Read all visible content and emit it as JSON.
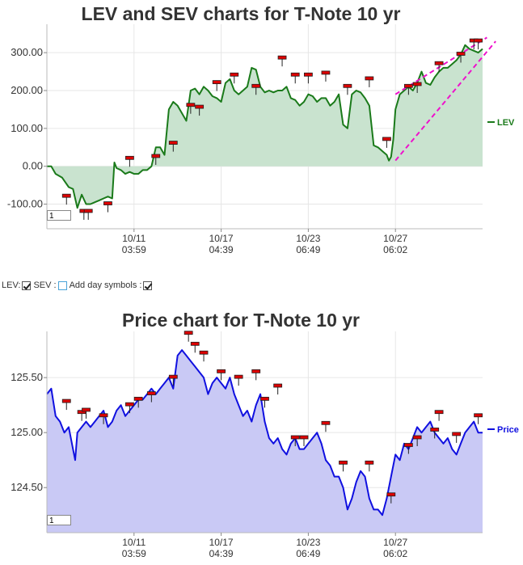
{
  "colors": {
    "lev_line": "#1a7a1a",
    "lev_fill": "#c9e3cf",
    "price_line": "#1010e0",
    "price_fill": "#c9c9f5",
    "trend": "#ee11cc",
    "symbol": "#dd0000",
    "grid": "#e6e6e6"
  },
  "controls": {
    "lev_label": "LEV:",
    "sev_label": "SEV :",
    "day_label": "Add day symbols :",
    "lev_checked": true,
    "sev_checked": false,
    "day_checked": true
  },
  "chart_data": [
    {
      "id": "lev",
      "type": "area",
      "title": "LEV and SEV charts for T-Note 10 yr",
      "xlabel": "",
      "ylabel": "",
      "ylim": [
        -165,
        375
      ],
      "y_ticks": [
        300,
        200,
        100,
        0,
        -100
      ],
      "y_tick_labels": [
        "300.00",
        "200.00",
        "100.00",
        "0.00",
        "-100.00"
      ],
      "x_tick_positions": [
        0.2,
        0.4,
        0.6,
        0.8
      ],
      "x_tick_labels": [
        [
          "10/11",
          "03:59"
        ],
        [
          "10/17",
          "04:39"
        ],
        [
          "10/23",
          "06:49"
        ],
        [
          "10/27",
          "06:02"
        ]
      ],
      "grid": true,
      "legend": "right",
      "zoom_value": "1",
      "series": [
        {
          "name": "LEV",
          "x": [
            0,
            0.01,
            0.02,
            0.035,
            0.05,
            0.06,
            0.07,
            0.08,
            0.09,
            0.1,
            0.11,
            0.12,
            0.13,
            0.14,
            0.15,
            0.155,
            0.16,
            0.17,
            0.18,
            0.19,
            0.2,
            0.21,
            0.22,
            0.23,
            0.24,
            0.25,
            0.26,
            0.27,
            0.28,
            0.29,
            0.3,
            0.31,
            0.32,
            0.33,
            0.34,
            0.35,
            0.36,
            0.37,
            0.38,
            0.39,
            0.4,
            0.41,
            0.42,
            0.43,
            0.44,
            0.45,
            0.46,
            0.47,
            0.48,
            0.49,
            0.5,
            0.51,
            0.52,
            0.53,
            0.54,
            0.55,
            0.56,
            0.57,
            0.58,
            0.59,
            0.6,
            0.61,
            0.62,
            0.63,
            0.64,
            0.65,
            0.66,
            0.67,
            0.68,
            0.69,
            0.7,
            0.71,
            0.72,
            0.73,
            0.74,
            0.75,
            0.76,
            0.77,
            0.78,
            0.785,
            0.79,
            0.795,
            0.8,
            0.81,
            0.82,
            0.83,
            0.84,
            0.85,
            0.86,
            0.87,
            0.88,
            0.89,
            0.9,
            0.91,
            0.92,
            0.93,
            0.94,
            0.95,
            0.96,
            0.97,
            0.98,
            0.99,
            1.0
          ],
          "values": [
            0,
            0,
            -20,
            -30,
            -55,
            -60,
            -110,
            -75,
            -100,
            -100,
            -95,
            -90,
            -85,
            -80,
            -85,
            10,
            -5,
            -10,
            -20,
            -15,
            -20,
            -20,
            -10,
            -10,
            0,
            50,
            50,
            30,
            150,
            170,
            160,
            140,
            120,
            200,
            205,
            190,
            210,
            200,
            185,
            180,
            170,
            220,
            230,
            200,
            190,
            200,
            210,
            260,
            255,
            210,
            195,
            200,
            195,
            200,
            200,
            210,
            180,
            175,
            160,
            170,
            190,
            185,
            170,
            180,
            180,
            160,
            170,
            190,
            110,
            100,
            190,
            200,
            195,
            180,
            160,
            55,
            50,
            40,
            30,
            15,
            25,
            70,
            150,
            190,
            200,
            210,
            200,
            220,
            250,
            220,
            215,
            235,
            250,
            260,
            260,
            270,
            280,
            295,
            320,
            310,
            305,
            300,
            310
          ]
        }
      ],
      "symbols": [
        {
          "x": 0.045,
          "y": -80
        },
        {
          "x": 0.085,
          "y": -120
        },
        {
          "x": 0.095,
          "y": -120
        },
        {
          "x": 0.14,
          "y": -100
        },
        {
          "x": 0.19,
          "y": 20
        },
        {
          "x": 0.25,
          "y": 25
        },
        {
          "x": 0.29,
          "y": 60
        },
        {
          "x": 0.33,
          "y": 160
        },
        {
          "x": 0.35,
          "y": 155
        },
        {
          "x": 0.39,
          "y": 220
        },
        {
          "x": 0.43,
          "y": 240
        },
        {
          "x": 0.48,
          "y": 210
        },
        {
          "x": 0.54,
          "y": 285
        },
        {
          "x": 0.57,
          "y": 240
        },
        {
          "x": 0.6,
          "y": 240
        },
        {
          "x": 0.64,
          "y": 245
        },
        {
          "x": 0.69,
          "y": 210
        },
        {
          "x": 0.74,
          "y": 230
        },
        {
          "x": 0.78,
          "y": 70
        },
        {
          "x": 0.83,
          "y": 210
        },
        {
          "x": 0.85,
          "y": 215
        },
        {
          "x": 0.9,
          "y": 270
        },
        {
          "x": 0.95,
          "y": 295
        },
        {
          "x": 0.98,
          "y": 330
        },
        {
          "x": 0.99,
          "y": 330
        }
      ],
      "trendlines": [
        {
          "x1": 0.8,
          "y1": 190,
          "x2": 1.01,
          "y2": 340
        },
        {
          "x1": 0.8,
          "y1": 15,
          "x2": 1.03,
          "y2": 330
        }
      ]
    },
    {
      "id": "price",
      "type": "area",
      "title": "Price chart for T-Note 10 yr",
      "xlabel": "",
      "ylabel": "",
      "ylim": [
        124.09,
        125.92
      ],
      "y_ticks": [
        125.5,
        125.0,
        124.5
      ],
      "y_tick_labels": [
        "125.50",
        "125.00",
        "124.50"
      ],
      "x_tick_positions": [
        0.2,
        0.4,
        0.6,
        0.8
      ],
      "x_tick_labels": [
        [
          "10/11",
          "03:59"
        ],
        [
          "10/17",
          "04:39"
        ],
        [
          "10/23",
          "06:49"
        ],
        [
          "10/27",
          "06:02"
        ]
      ],
      "grid": true,
      "legend": "right",
      "zoom_value": "1",
      "series": [
        {
          "name": "Price",
          "x": [
            0,
            0.01,
            0.02,
            0.03,
            0.04,
            0.05,
            0.06,
            0.065,
            0.07,
            0.08,
            0.09,
            0.1,
            0.11,
            0.12,
            0.13,
            0.14,
            0.15,
            0.16,
            0.17,
            0.18,
            0.19,
            0.2,
            0.21,
            0.22,
            0.23,
            0.24,
            0.25,
            0.26,
            0.27,
            0.28,
            0.29,
            0.3,
            0.31,
            0.32,
            0.33,
            0.34,
            0.35,
            0.36,
            0.37,
            0.38,
            0.39,
            0.4,
            0.41,
            0.42,
            0.43,
            0.44,
            0.45,
            0.46,
            0.47,
            0.48,
            0.49,
            0.5,
            0.51,
            0.52,
            0.53,
            0.54,
            0.55,
            0.56,
            0.57,
            0.58,
            0.59,
            0.6,
            0.61,
            0.62,
            0.63,
            0.64,
            0.65,
            0.66,
            0.67,
            0.68,
            0.69,
            0.7,
            0.71,
            0.72,
            0.73,
            0.74,
            0.75,
            0.76,
            0.77,
            0.78,
            0.79,
            0.8,
            0.81,
            0.82,
            0.83,
            0.84,
            0.85,
            0.86,
            0.87,
            0.88,
            0.89,
            0.9,
            0.91,
            0.92,
            0.93,
            0.94,
            0.95,
            0.96,
            0.97,
            0.98,
            0.99,
            1.0
          ],
          "values": [
            125.35,
            125.4,
            125.15,
            125.1,
            125.0,
            125.05,
            124.85,
            124.75,
            125.0,
            125.05,
            125.1,
            125.05,
            125.1,
            125.15,
            125.2,
            125.05,
            125.1,
            125.2,
            125.25,
            125.15,
            125.2,
            125.25,
            125.3,
            125.3,
            125.35,
            125.4,
            125.35,
            125.4,
            125.45,
            125.5,
            125.4,
            125.7,
            125.75,
            125.7,
            125.65,
            125.6,
            125.55,
            125.5,
            125.35,
            125.45,
            125.5,
            125.45,
            125.4,
            125.5,
            125.35,
            125.25,
            125.15,
            125.2,
            125.1,
            125.25,
            125.35,
            125.1,
            124.95,
            124.9,
            124.95,
            124.85,
            124.8,
            124.9,
            124.95,
            124.85,
            124.85,
            124.9,
            124.95,
            125.0,
            124.9,
            124.75,
            124.7,
            124.6,
            124.6,
            124.5,
            124.3,
            124.4,
            124.55,
            124.65,
            124.6,
            124.4,
            124.3,
            124.3,
            124.25,
            124.4,
            124.6,
            124.8,
            124.75,
            124.9,
            124.85,
            124.95,
            125.05,
            125.0,
            125.05,
            125.1,
            125.0,
            124.95,
            124.9,
            124.95,
            124.85,
            124.8,
            124.9,
            125.0,
            125.05,
            125.1,
            125.0,
            125.0
          ]
        }
      ],
      "symbols": [
        {
          "x": 0.045,
          "y": 125.28
        },
        {
          "x": 0.08,
          "y": 125.18
        },
        {
          "x": 0.09,
          "y": 125.2
        },
        {
          "x": 0.13,
          "y": 125.15
        },
        {
          "x": 0.19,
          "y": 125.25
        },
        {
          "x": 0.21,
          "y": 125.3
        },
        {
          "x": 0.24,
          "y": 125.35
        },
        {
          "x": 0.29,
          "y": 125.5
        },
        {
          "x": 0.325,
          "y": 125.9
        },
        {
          "x": 0.34,
          "y": 125.8
        },
        {
          "x": 0.36,
          "y": 125.72
        },
        {
          "x": 0.4,
          "y": 125.55
        },
        {
          "x": 0.44,
          "y": 125.5
        },
        {
          "x": 0.48,
          "y": 125.55
        },
        {
          "x": 0.5,
          "y": 125.3
        },
        {
          "x": 0.53,
          "y": 125.42
        },
        {
          "x": 0.57,
          "y": 124.95
        },
        {
          "x": 0.59,
          "y": 124.95
        },
        {
          "x": 0.64,
          "y": 125.08
        },
        {
          "x": 0.68,
          "y": 124.72
        },
        {
          "x": 0.74,
          "y": 124.72
        },
        {
          "x": 0.79,
          "y": 124.43
        },
        {
          "x": 0.83,
          "y": 124.88
        },
        {
          "x": 0.85,
          "y": 124.95
        },
        {
          "x": 0.89,
          "y": 125.02
        },
        {
          "x": 0.9,
          "y": 125.18
        },
        {
          "x": 0.94,
          "y": 124.98
        },
        {
          "x": 0.99,
          "y": 125.15
        }
      ]
    }
  ]
}
